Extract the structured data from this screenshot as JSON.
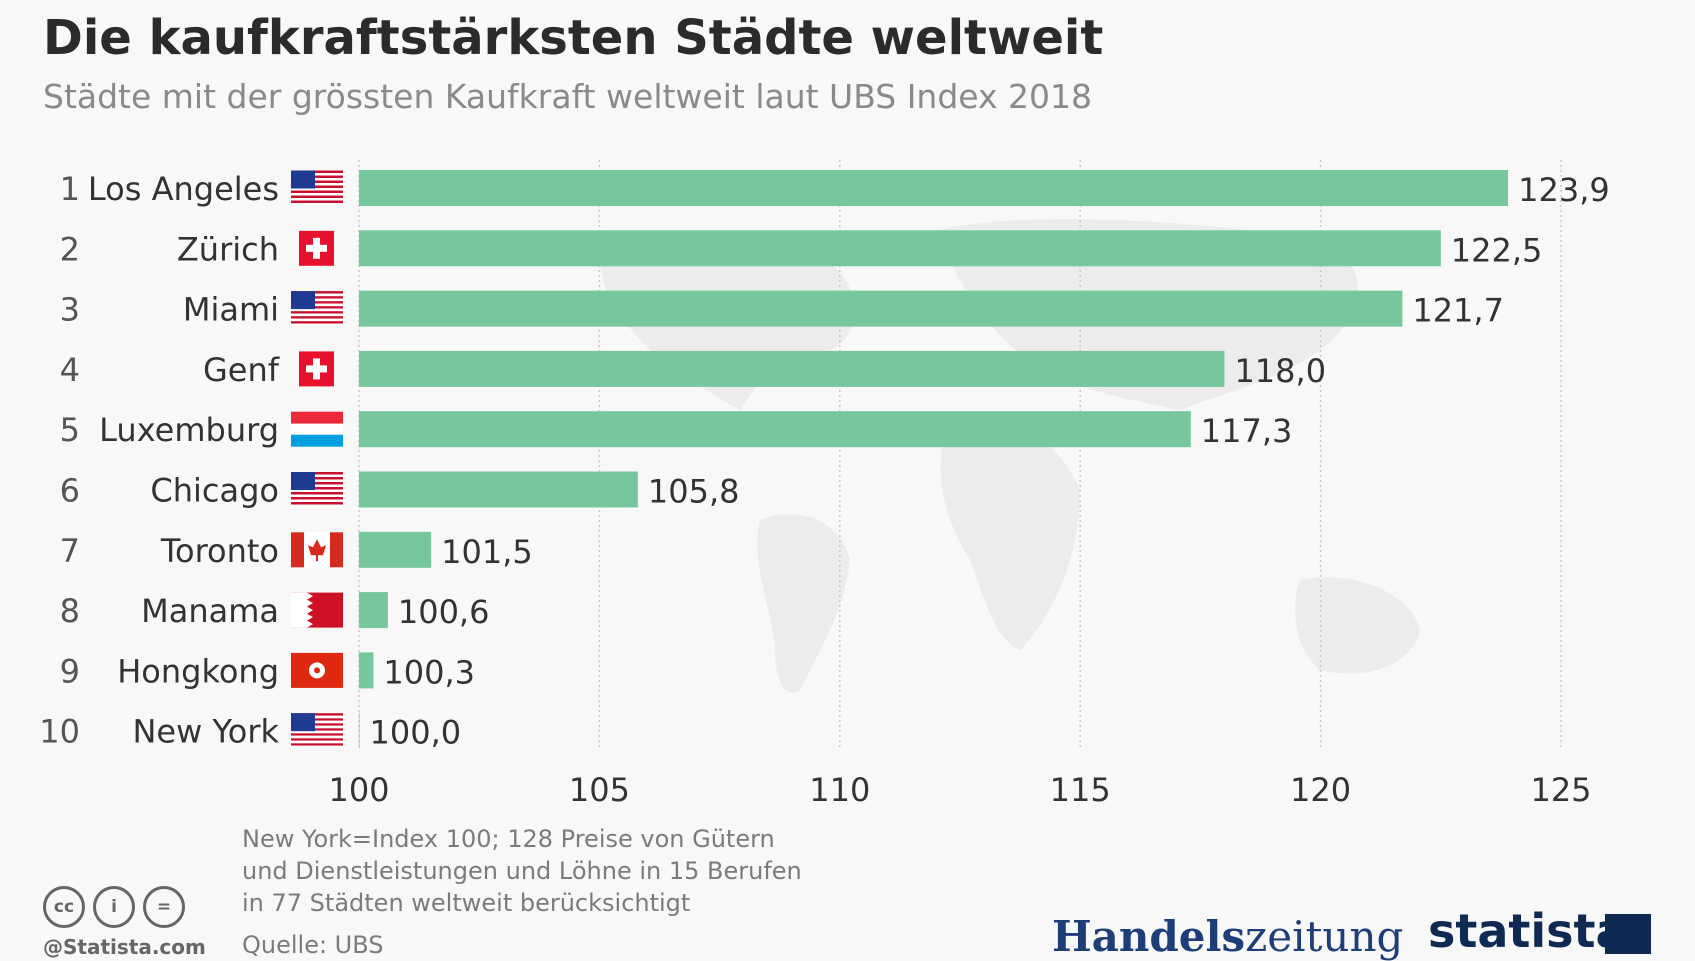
{
  "header": {
    "title": "Die kaufkraftstärksten Städte weltweit",
    "subtitle": "Städte mit der grössten Kaufkraft weltweit laut UBS Index 2018"
  },
  "chart_data": {
    "type": "bar",
    "orientation": "horizontal",
    "title": "Die kaufkraftstärksten Städte weltweit",
    "subtitle": "Städte mit der grössten Kaufkraft weltweit laut UBS Index 2018",
    "xlabel": "",
    "ylabel": "",
    "xlim": [
      100,
      125
    ],
    "xticks": [
      "100",
      "105",
      "110",
      "115",
      "120",
      "125"
    ],
    "grid": true,
    "bar_color": "#76c79b",
    "categories": [
      "Los Angeles",
      "Zürich",
      "Miami",
      "Genf",
      "Luxemburg",
      "Chicago",
      "Toronto",
      "Manama",
      "Hongkong",
      "New York"
    ],
    "ranks": [
      "1",
      "2",
      "3",
      "4",
      "5",
      "6",
      "7",
      "8",
      "9",
      "10"
    ],
    "flags": [
      "us-flag-icon",
      "swiss-flag-icon",
      "us-flag-icon",
      "swiss-flag-icon",
      "luxembourg-flag-icon",
      "us-flag-icon",
      "canada-flag-icon",
      "bahrain-flag-icon",
      "hongkong-flag-icon",
      "us-flag-icon"
    ],
    "values": [
      123.9,
      122.5,
      121.7,
      118.0,
      117.3,
      105.8,
      101.5,
      100.6,
      100.3,
      100.0
    ],
    "value_labels": [
      "123,9",
      "122,5",
      "121,7",
      "118,0",
      "117,3",
      "105,8",
      "101,5",
      "100,6",
      "100,3",
      "100,0"
    ]
  },
  "footer": {
    "note_lines": [
      "New York=Index 100; 128 Preise von Gütern",
      "und Dienstleistungen und Löhne in 15 Berufen",
      "in 77 Städten weltweit berücksichtigt"
    ],
    "source": "Quelle: UBS",
    "handle": "@Statista.com",
    "cc_icons": [
      "cc",
      "i",
      "="
    ],
    "logo_hz_bold": "Handels",
    "logo_hz_light": "zeitung",
    "logo_statista": "statista"
  }
}
